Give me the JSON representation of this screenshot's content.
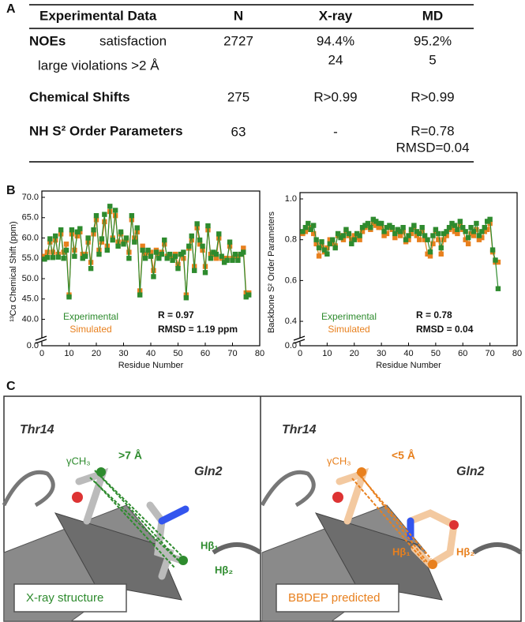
{
  "panel_labels": [
    "A",
    "B",
    "C"
  ],
  "table": {
    "header": [
      "Experimental Data",
      "N",
      "X-ray",
      "MD"
    ],
    "rows": [
      {
        "label": "NOEs",
        "sublabel": "satisfaction",
        "cells": [
          "2727",
          "94.4%",
          "95.2%"
        ]
      },
      {
        "label": "large violations >2 Å",
        "cells": [
          null,
          "24",
          "5"
        ]
      },
      {
        "label": "Chemical Shifts",
        "cells": [
          "275",
          "R>0.99",
          "R>0.99"
        ]
      },
      {
        "label": "NH S² Order Parameters",
        "cells": [
          "63",
          "-",
          [
            "R=0.78",
            "RMSD=0.04"
          ]
        ]
      }
    ]
  },
  "chart_data": [
    {
      "type": "scatter-line",
      "x_label": "Residue Number",
      "y_label": "¹³Cα Chemical Shift (ppm)",
      "xlim": [
        0,
        80
      ],
      "xticks": [
        0,
        10,
        20,
        30,
        40,
        50,
        60,
        70,
        80
      ],
      "ylim": [
        0,
        70
      ],
      "y_break": [
        0,
        37
      ],
      "yticks": [
        {
          "value": 0,
          "label": "0.0"
        },
        {
          "value": 40,
          "label": "40.0"
        },
        {
          "value": 45,
          "label": "45.0"
        },
        {
          "value": 50,
          "label": "50.0"
        },
        {
          "value": 55,
          "label": "55.0"
        },
        {
          "value": 60,
          "label": "60.0"
        },
        {
          "value": 65,
          "label": "65.0"
        },
        {
          "value": 70,
          "label": "70.0"
        }
      ],
      "x": [
        1,
        2,
        3,
        4,
        5,
        6,
        7,
        8,
        9,
        10,
        11,
        12,
        13,
        14,
        15,
        16,
        17,
        18,
        19,
        20,
        21,
        22,
        23,
        24,
        25,
        26,
        27,
        28,
        29,
        30,
        31,
        32,
        33,
        34,
        35,
        36,
        37,
        38,
        39,
        40,
        41,
        42,
        43,
        44,
        45,
        46,
        47,
        48,
        49,
        50,
        51,
        52,
        53,
        54,
        55,
        56,
        57,
        58,
        59,
        60,
        61,
        62,
        63,
        64,
        65,
        66,
        67,
        68,
        69,
        70,
        71,
        72,
        73,
        74,
        75,
        76
      ],
      "series": [
        {
          "name": "Experimental",
          "color": "#2e8b2e",
          "values": [
            54.8,
            55.2,
            59.8,
            55.2,
            60.5,
            55.3,
            62.0,
            55.0,
            57.0,
            45.5,
            62.0,
            55.5,
            61.5,
            62.3,
            55.0,
            55.5,
            60.0,
            52.5,
            62.0,
            65.5,
            56.0,
            59.8,
            65.8,
            57.0,
            67.8,
            59.5,
            66.8,
            58.0,
            61.5,
            58.5,
            60.0,
            55.0,
            65.5,
            59.0,
            62.5,
            46.0,
            57.0,
            55.0,
            57.0,
            55.5,
            50.5,
            56.5,
            55.0,
            56.0,
            59.5,
            55.0,
            56.0,
            54.5,
            55.5,
            52.5,
            56.0,
            56.5,
            45.3,
            58.0,
            60.5,
            52.0,
            63.5,
            59.5,
            58.0,
            51.5,
            63.0,
            55.0,
            56.5,
            56.0,
            61.0,
            55.5,
            54.0,
            54.5,
            59.0,
            54.5,
            56.0,
            54.5,
            56.0,
            56.5,
            45.5,
            46.0
          ]
        },
        {
          "name": "Simulated",
          "color": "#e8801e",
          "values": [
            55.5,
            56.5,
            59.0,
            56.5,
            59.5,
            56.0,
            61.0,
            56.5,
            58.5,
            46.0,
            61.0,
            57.0,
            60.5,
            61.5,
            56.0,
            56.0,
            59.0,
            54.0,
            61.0,
            64.5,
            57.0,
            59.0,
            64.0,
            58.0,
            66.5,
            60.0,
            65.5,
            59.0,
            61.0,
            59.0,
            59.5,
            56.5,
            64.5,
            60.0,
            61.5,
            47.0,
            58.0,
            56.0,
            56.5,
            56.5,
            52.0,
            57.0,
            56.0,
            56.5,
            58.5,
            55.5,
            55.5,
            55.0,
            56.0,
            53.5,
            56.0,
            55.0,
            46.0,
            57.5,
            59.5,
            53.0,
            62.5,
            58.5,
            57.0,
            53.0,
            62.0,
            56.0,
            56.0,
            55.0,
            60.0,
            55.0,
            55.0,
            55.0,
            58.0,
            55.0,
            55.5,
            55.5,
            56.0,
            57.5,
            46.5,
            46.5
          ]
        }
      ],
      "stats": [
        "R = 0.97",
        "RMSD = 1.19 ppm"
      ]
    },
    {
      "type": "scatter-line",
      "x_label": "Residue Number",
      "y_label": "Backbone S² Order Parameters",
      "xlim": [
        0,
        80
      ],
      "xticks": [
        0,
        10,
        20,
        30,
        40,
        50,
        60,
        70,
        80
      ],
      "ylim": [
        0,
        1
      ],
      "y_break": [
        0,
        0.35
      ],
      "yticks": [
        {
          "value": 0,
          "label": "0.0"
        },
        0.4,
        0.6,
        0.8,
        {
          "value": 1,
          "label": "1.0"
        }
      ],
      "x": [
        1,
        2,
        3,
        4,
        5,
        6,
        7,
        8,
        9,
        10,
        11,
        12,
        13,
        14,
        15,
        16,
        17,
        18,
        19,
        20,
        21,
        22,
        23,
        24,
        25,
        26,
        27,
        28,
        29,
        30,
        31,
        32,
        33,
        34,
        35,
        36,
        37,
        38,
        39,
        40,
        41,
        42,
        43,
        44,
        45,
        46,
        47,
        48,
        49,
        50,
        51,
        52,
        53,
        54,
        55,
        56,
        57,
        58,
        59,
        60,
        61,
        62,
        63,
        64,
        65,
        66,
        67,
        68,
        69,
        70,
        71,
        72,
        73
      ],
      "series": [
        {
          "name": "Experimental",
          "color": "#2e8b2e",
          "values": [
            0.84,
            0.86,
            0.88,
            0.85,
            0.87,
            0.8,
            0.76,
            0.79,
            0.75,
            0.73,
            0.78,
            0.8,
            0.76,
            0.83,
            0.81,
            0.82,
            0.85,
            0.83,
            0.78,
            0.8,
            0.83,
            0.82,
            0.86,
            0.87,
            0.88,
            0.86,
            0.9,
            0.89,
            0.88,
            0.88,
            0.84,
            0.86,
            0.87,
            0.86,
            0.83,
            0.85,
            0.84,
            0.86,
            0.8,
            0.82,
            0.85,
            0.87,
            0.84,
            0.83,
            0.86,
            0.82,
            0.8,
            0.74,
            0.82,
            0.85,
            0.83,
            0.76,
            0.83,
            0.84,
            0.86,
            0.88,
            0.87,
            0.85,
            0.89,
            0.86,
            0.84,
            0.81,
            0.86,
            0.84,
            0.88,
            0.82,
            0.84,
            0.86,
            0.89,
            0.9,
            0.75,
            0.7,
            0.56
          ]
        },
        {
          "name": "Simulated",
          "color": "#e8801e",
          "values": [
            0.83,
            0.84,
            0.85,
            0.86,
            0.83,
            0.78,
            0.72,
            0.77,
            0.74,
            0.76,
            0.8,
            0.78,
            0.77,
            0.82,
            0.82,
            0.8,
            0.84,
            0.82,
            0.8,
            0.82,
            0.81,
            0.8,
            0.84,
            0.86,
            0.87,
            0.85,
            0.88,
            0.87,
            0.86,
            0.86,
            0.82,
            0.83,
            0.86,
            0.85,
            0.81,
            0.84,
            0.82,
            0.84,
            0.79,
            0.8,
            0.83,
            0.86,
            0.82,
            0.8,
            0.84,
            0.8,
            0.73,
            0.72,
            0.78,
            0.84,
            0.8,
            0.73,
            0.8,
            0.82,
            0.85,
            0.86,
            0.84,
            0.83,
            0.87,
            0.85,
            0.8,
            0.78,
            0.83,
            0.82,
            0.85,
            0.8,
            0.81,
            0.84,
            0.85,
            0.88,
            0.74,
            0.69,
            0.69
          ]
        }
      ],
      "stats": [
        "R = 0.78",
        "RMSD = 0.04"
      ]
    }
  ],
  "panel_c": [
    {
      "residue_a": "Thr14",
      "residue_b": "Gln2",
      "methyl": "γCH₃",
      "distance": ">7 Å",
      "h1": "Hβ₁",
      "h2": "Hβ₂",
      "caption": "X-ray structure"
    },
    {
      "residue_a": "Thr14",
      "residue_b": "Gln2",
      "methyl": "γCH₃",
      "distance": "<5 Å",
      "h1": "Hβ₁",
      "h2": "Hβ₂",
      "caption": "BBDEP predicted"
    }
  ]
}
